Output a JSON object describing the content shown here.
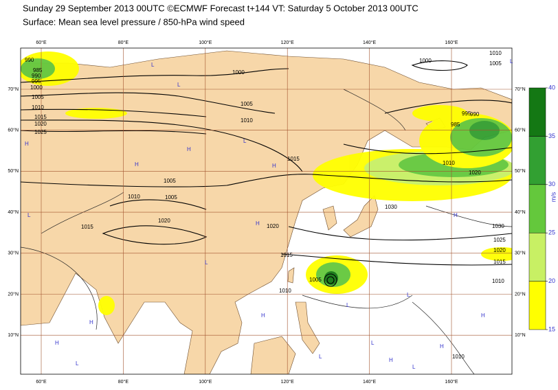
{
  "header": {
    "title": "Sunday 29 September 2013 00UTC ©ECMWF Forecast t+144 VT: Saturday 5 October 2013 00UTC",
    "subtitle": "Surface: Mean sea level pressure / 850-hPa wind speed"
  },
  "map": {
    "lon_labels": [
      "60°E",
      "80°E",
      "100°E",
      "120°E",
      "140°E",
      "160°E"
    ],
    "lat_labels": [
      "70°N",
      "60°N",
      "50°N",
      "40°N",
      "30°N",
      "20°N",
      "10°N"
    ],
    "isobar_labels": [
      "1010",
      "1005",
      "1000",
      "1000",
      "990",
      "985",
      "990",
      "995",
      "1000",
      "1005",
      "1010",
      "1015",
      "1020",
      "1025",
      "1005",
      "1010",
      "1015",
      "1005",
      "1010",
      "1005",
      "1015",
      "1020",
      "1015",
      "1010",
      "1020",
      "1030",
      "995",
      "990",
      "985",
      "1010",
      "1020",
      "1030",
      "1025",
      "1020",
      "1015",
      "1010",
      "1005",
      "1010"
    ],
    "pressure_centers": [
      "L",
      "L",
      "H",
      "H",
      "H",
      "L",
      "H",
      "L",
      "H",
      "L",
      "H",
      "L",
      "H",
      "L",
      "H",
      "L",
      "H",
      "L",
      "H",
      "L",
      "H",
      "L",
      "H",
      "L"
    ]
  },
  "colorbar": {
    "levels": [
      15,
      20,
      25,
      30,
      35,
      40
    ],
    "colors": [
      "#ffff00",
      "#c8f064",
      "#64c83c",
      "#32a032",
      "#147814"
    ],
    "unit": "m/s"
  }
}
